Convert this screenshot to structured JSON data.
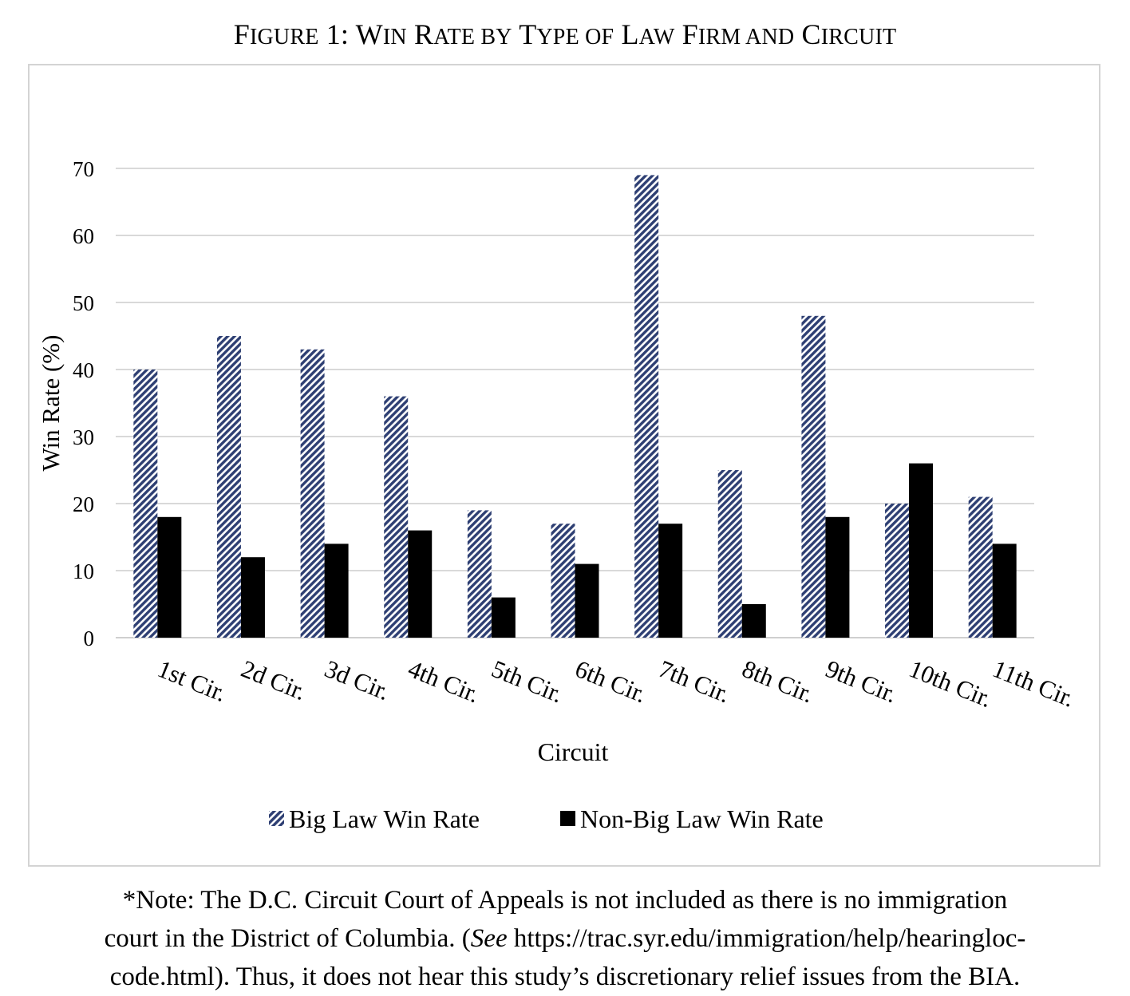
{
  "figure": {
    "title_lead": "F",
    "title_rest": "IGURE 1: W",
    "title_html_parts": [
      "F",
      "IGURE",
      " 1: W",
      "IN",
      " R",
      "ATE BY",
      " T",
      "YPE OF",
      " L",
      "AW",
      " F",
      "IRM AND",
      " C",
      "IRCUIT"
    ]
  },
  "chart_data": {
    "type": "bar",
    "title": "FIGURE 1: WIN RATE BY TYPE OF LAW FIRM AND CIRCUIT",
    "xlabel": "Circuit",
    "ylabel": "Win Rate (%)",
    "ylim": [
      0,
      70
    ],
    "yticks": [
      0,
      10,
      20,
      30,
      40,
      50,
      60,
      70
    ],
    "grid": true,
    "legend_position": "bottom",
    "categories": [
      "1st Cir.",
      "2d Cir.",
      "3d Cir.",
      "4th Cir.",
      "5th Cir.",
      "6th Cir.",
      "7th Cir.",
      "8th Cir.",
      "9th Cir.",
      "10th Cir.",
      "11th Cir."
    ],
    "series": [
      {
        "name": "Big Law Win Rate",
        "color": "#2e3f73",
        "pattern": "diagonal-hatch",
        "values": [
          40,
          45,
          43,
          36,
          19,
          17,
          69,
          25,
          48,
          20,
          21
        ]
      },
      {
        "name": "Non-Big Law Win Rate",
        "color": "#000000",
        "pattern": "solid",
        "values": [
          18,
          12,
          14,
          16,
          6,
          11,
          17,
          5,
          18,
          26,
          14
        ]
      }
    ]
  },
  "note": {
    "line1": "*Note: The D.C. Circuit Court of Appeals is not included as there is no immigration",
    "line2_pre": "court in the District of Columbia. (",
    "line2_see": "See",
    "line2_post": " https://trac.syr.edu/immigration/help/hearingloc-",
    "line3": "code.html). Thus, it does not hear this study’s discretionary relief issues from the BIA."
  }
}
